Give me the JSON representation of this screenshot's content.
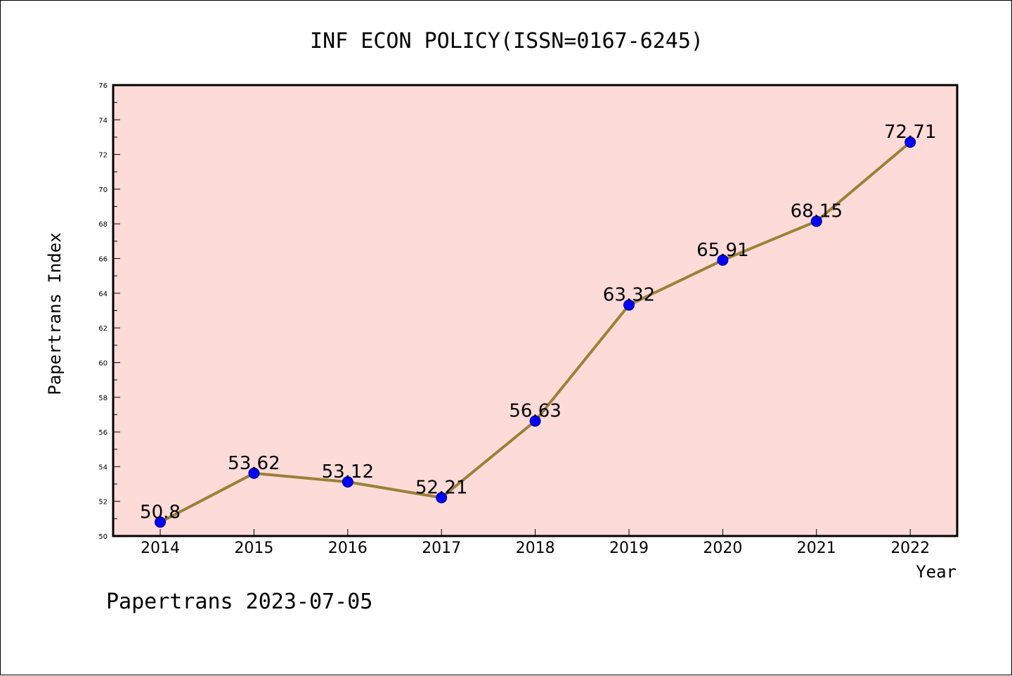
{
  "chart_data": {
    "type": "line",
    "title": "INF ECON POLICY(ISSN=0167-6245)",
    "xlabel": "Year",
    "ylabel": "Papertrans Index",
    "categories": [
      "2014",
      "2015",
      "2016",
      "2017",
      "2018",
      "2019",
      "2020",
      "2021",
      "2022"
    ],
    "values": [
      50.8,
      53.62,
      53.12,
      52.21,
      56.63,
      63.32,
      65.91,
      68.15,
      72.71
    ],
    "data_labels": [
      "50.8",
      "53.62",
      "53.12",
      "52.21",
      "56.63",
      "63.32",
      "65.91",
      "68.15",
      "72.71"
    ],
    "ylim": [
      50,
      76
    ],
    "yticks": [
      "50",
      "52",
      "54",
      "56",
      "58",
      "60",
      "62",
      "64",
      "66",
      "68",
      "70",
      "72",
      "74",
      "76"
    ],
    "grid": false,
    "legend": "none"
  },
  "footer": {
    "text": "Papertrans 2023-07-05"
  },
  "colors": {
    "plot_background": "#fddbd8",
    "line": "#9a8137",
    "marker": "#0000ff",
    "axis": "#000000"
  }
}
